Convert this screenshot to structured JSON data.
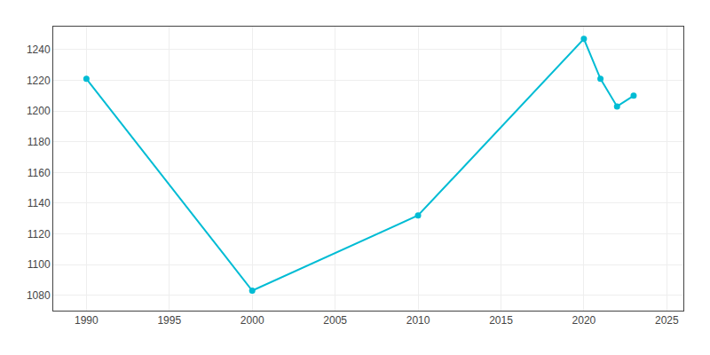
{
  "chart_data": {
    "type": "line",
    "x": [
      1990,
      2000,
      2010,
      2020,
      2021,
      2022,
      2023
    ],
    "values": [
      1221,
      1083,
      1132,
      1247,
      1221,
      1203,
      1210
    ],
    "color": "#00BCD4",
    "marker": "circle",
    "line_style": "solid",
    "xlim": [
      1988,
      2026
    ],
    "ylim": [
      1070,
      1255
    ],
    "xticks": [
      1990,
      1995,
      2000,
      2005,
      2010,
      2015,
      2020,
      2025
    ],
    "yticks": [
      1080,
      1100,
      1120,
      1140,
      1160,
      1180,
      1200,
      1220,
      1240
    ],
    "grid": true
  }
}
